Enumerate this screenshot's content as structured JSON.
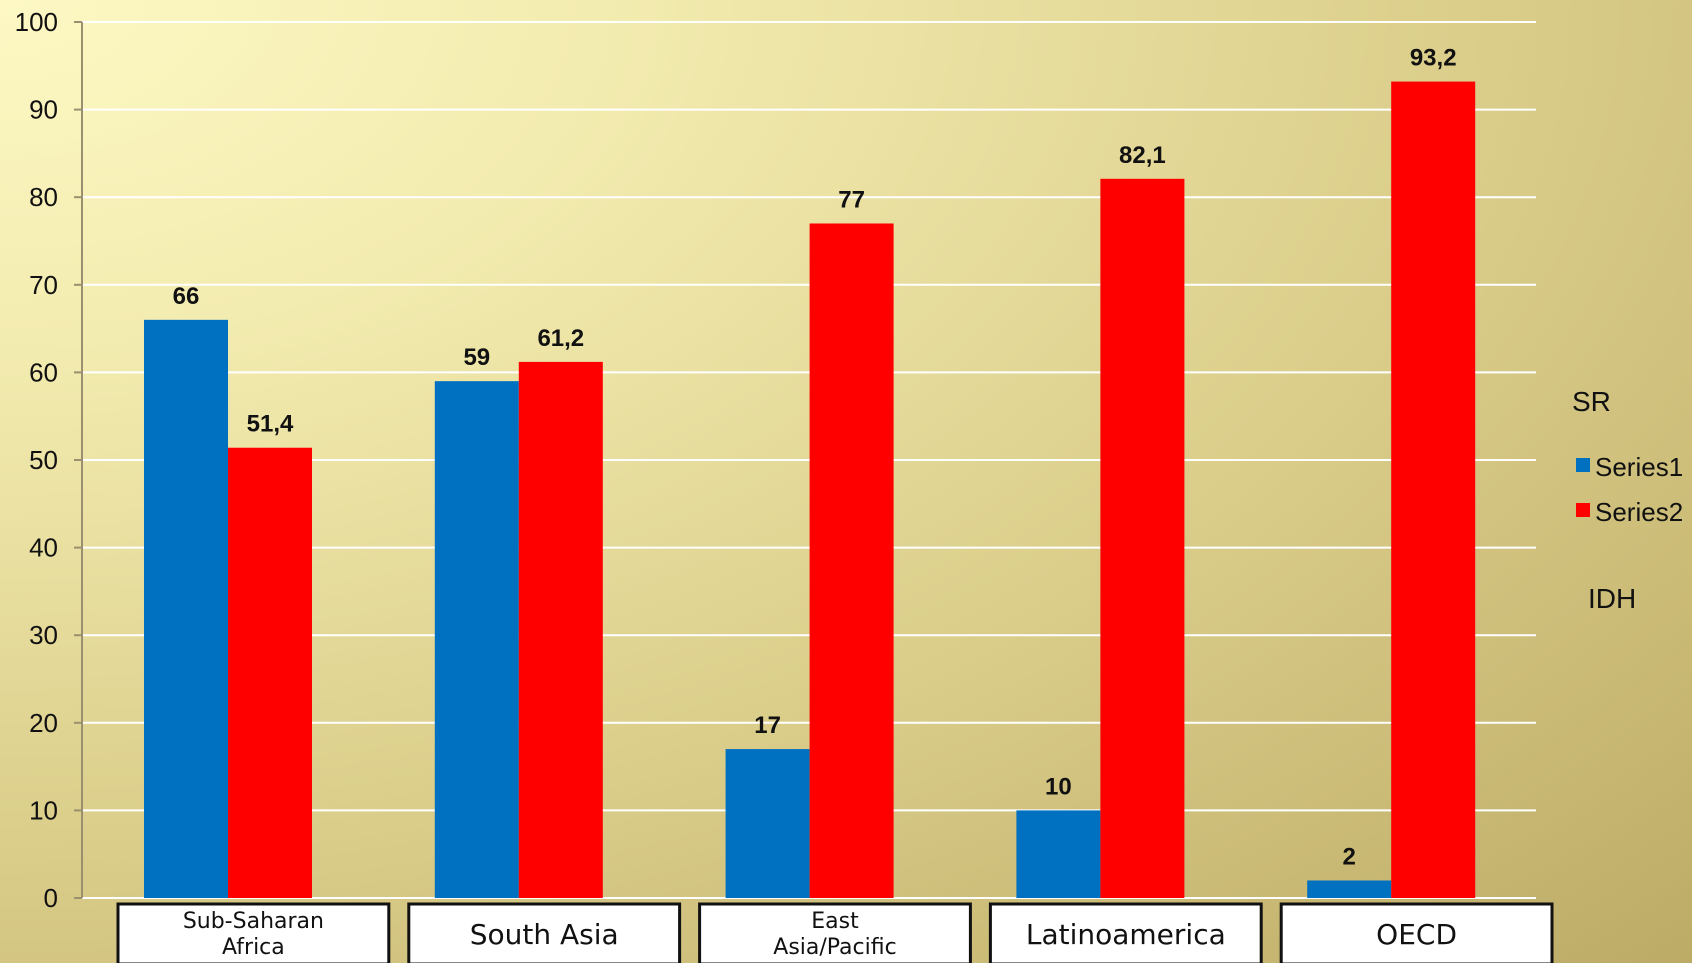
{
  "chart_data": {
    "type": "bar",
    "categories": [
      "Sub-Saharan Africa",
      "South Asia",
      "East Asia/Pacific",
      "Latinoamerica",
      "OECD"
    ],
    "series": [
      {
        "name": "Series1",
        "values": [
          66,
          59,
          17,
          10,
          2
        ],
        "labels": [
          "66",
          "59",
          "17",
          "10",
          "2"
        ],
        "color": "#0070c0"
      },
      {
        "name": "Series2",
        "values": [
          51.4,
          61.2,
          77,
          82.1,
          93.2
        ],
        "labels": [
          "51,4",
          "61,2",
          "77",
          "82,1",
          "93,2"
        ],
        "color": "#ff0000"
      }
    ],
    "ylim": [
      0,
      100
    ],
    "yticks": [
      "0",
      "10",
      "20",
      "30",
      "40",
      "50",
      "60",
      "70",
      "80",
      "90",
      "100"
    ],
    "grid": true,
    "legend": "right"
  },
  "side_labels": {
    "top": "SR",
    "bottom": "IDH"
  }
}
